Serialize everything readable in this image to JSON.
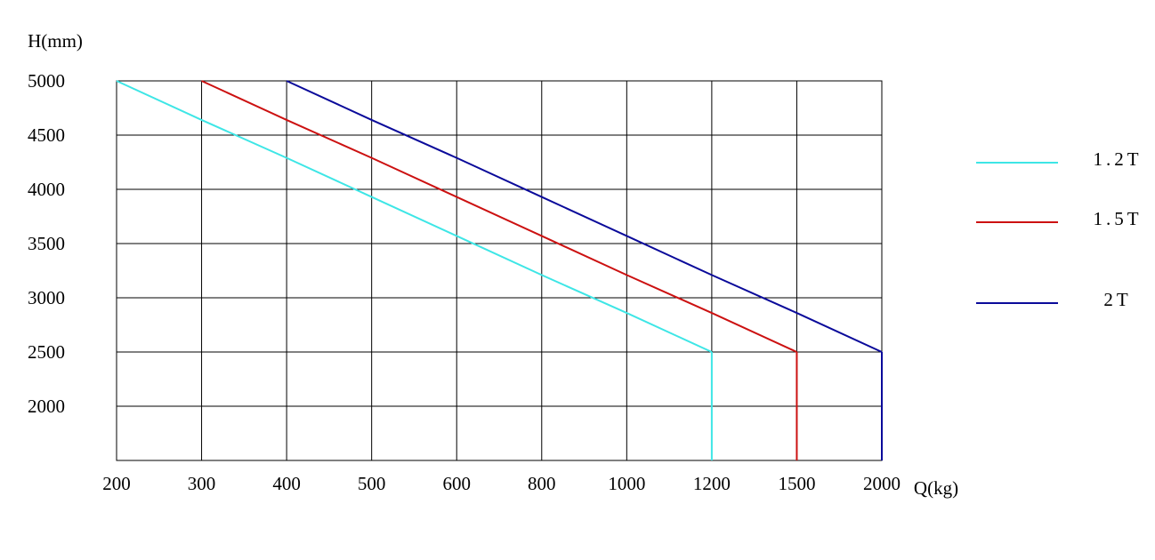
{
  "chart_data": {
    "type": "line",
    "x_label": "Q(kg)",
    "y_label": "H(mm)",
    "categories": [
      200,
      300,
      400,
      500,
      600,
      800,
      1000,
      1200,
      1500,
      2000
    ],
    "series": [
      {
        "name": "1.2T",
        "color": "#3ee6e6",
        "values": [
          5000,
          4640,
          4290,
          3930,
          3570,
          3210,
          2860,
          2500,
          null,
          null
        ]
      },
      {
        "name": "1.5T",
        "color": "#cc1111",
        "values": [
          null,
          5000,
          4640,
          4290,
          3930,
          3570,
          3210,
          2860,
          2500,
          null
        ]
      },
      {
        "name": "2T",
        "color": "#0a0a9a",
        "values": [
          null,
          null,
          5000,
          4640,
          4290,
          3930,
          3570,
          3210,
          2860,
          2500
        ]
      }
    ],
    "ylim": [
      1500,
      5000
    ],
    "yticks": [
      2000,
      2500,
      3000,
      3500,
      4000,
      4500,
      5000
    ],
    "grid": true,
    "legend": "right"
  }
}
